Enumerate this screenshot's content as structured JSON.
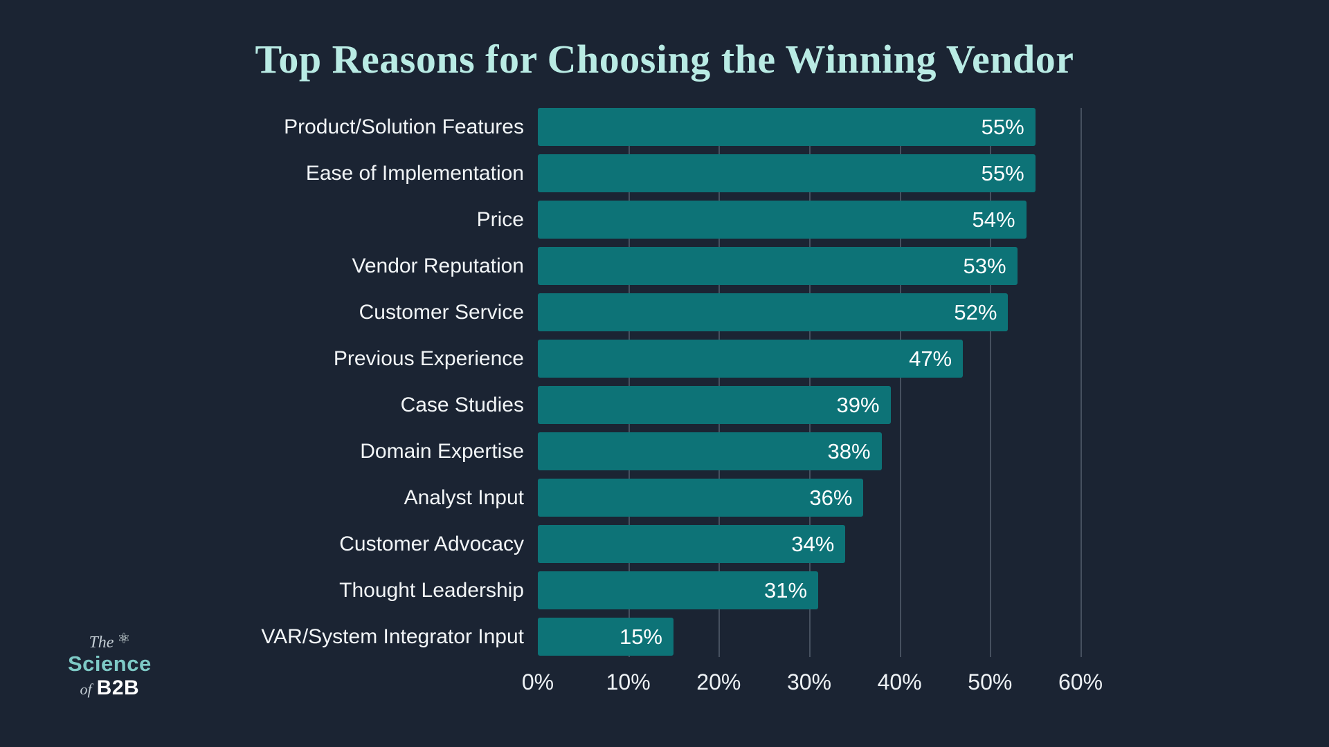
{
  "title": "Top Reasons for Choosing the Winning Vendor",
  "chart_data": {
    "type": "bar",
    "orientation": "horizontal",
    "title": "Top Reasons for Choosing the Winning Vendor",
    "categories": [
      "Product/Solution Features",
      "Ease of Implementation",
      "Price",
      "Vendor Reputation",
      "Customer Service",
      "Previous Experience",
      "Case Studies",
      "Domain Expertise",
      "Analyst Input",
      "Customer Advocacy",
      "Thought Leadership",
      "VAR/System Integrator Input"
    ],
    "values": [
      55,
      55,
      54,
      53,
      52,
      47,
      39,
      38,
      36,
      34,
      31,
      15
    ],
    "value_labels": [
      "55%",
      "55%",
      "54%",
      "53%",
      "52%",
      "47%",
      "39%",
      "38%",
      "36%",
      "34%",
      "31%",
      "15%"
    ],
    "xlabel": "",
    "ylabel": "",
    "xlim": [
      0,
      60
    ],
    "x_ticks": [
      0,
      10,
      20,
      30,
      40,
      50,
      60
    ],
    "x_tick_labels": [
      "0%",
      "10%",
      "20%",
      "30%",
      "40%",
      "50%",
      "60%"
    ],
    "grid": true,
    "legend": false,
    "bar_color": "#0d7377",
    "value_label_color": "#ffffff",
    "background_color": "#1b2433",
    "title_color": "#b9ebe4",
    "gridline_color": "#46505f"
  },
  "logo": {
    "the": "The",
    "atom_icon": "⚛",
    "science": "Science",
    "of": "of",
    "b2b": "B2B"
  }
}
